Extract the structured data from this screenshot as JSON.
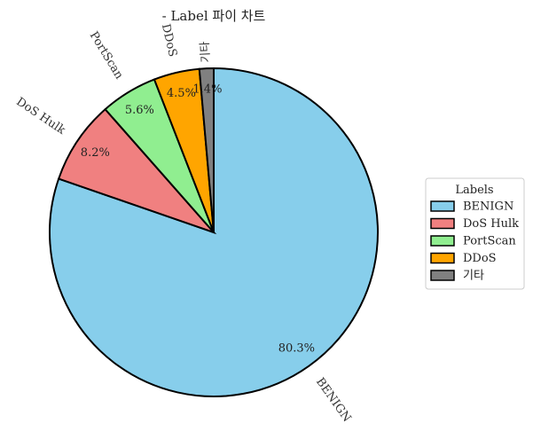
{
  "chart_data": {
    "type": "pie",
    "title": "- Label 파이 차트",
    "categories": [
      "BENIGN",
      "DoS Hulk",
      "PortScan",
      "DDoS",
      "기타"
    ],
    "values": [
      80.3,
      8.2,
      5.6,
      4.5,
      1.4
    ],
    "value_labels": [
      "80.3%",
      "8.2%",
      "5.6%",
      "4.5%",
      "1.4%"
    ],
    "colors": [
      "#87CEEB",
      "#F08080",
      "#90EE90",
      "#FFA500",
      "#808080"
    ],
    "start_angle_deg": 90,
    "direction": "clockwise",
    "edge_color": "#000000",
    "legend": {
      "title": "Labels",
      "placement": "right",
      "entries": [
        "BENIGN",
        "DoS Hulk",
        "PortScan",
        "DDoS",
        "기타"
      ]
    }
  }
}
